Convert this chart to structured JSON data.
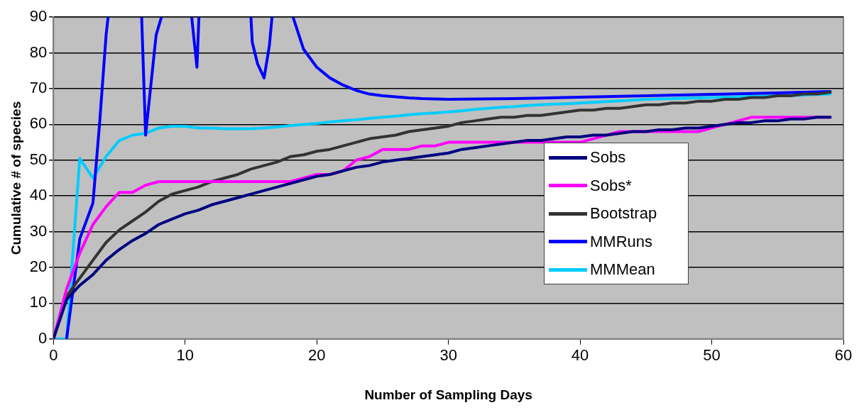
{
  "chart_data": {
    "type": "line",
    "xlabel": "Number of Sampling Days",
    "ylabel": "Cumulative # of species",
    "xlim": [
      0,
      60
    ],
    "xticks": [
      0,
      10,
      20,
      30,
      40,
      50,
      60
    ],
    "ylim": [
      0,
      90
    ],
    "yticks": [
      0,
      10,
      20,
      30,
      40,
      50,
      60,
      70,
      80,
      90
    ],
    "grid": "y",
    "legend": "right",
    "marker": "none",
    "line_style": "solid",
    "x": [
      0,
      1,
      2,
      3,
      4,
      5,
      6,
      7,
      8,
      9,
      10,
      11,
      12,
      13,
      14,
      15,
      16,
      17,
      18,
      19,
      20,
      21,
      22,
      23,
      24,
      25,
      26,
      27,
      28,
      29,
      30,
      31,
      32,
      33,
      34,
      35,
      36,
      37,
      38,
      39,
      40,
      41,
      42,
      43,
      44,
      45,
      46,
      47,
      48,
      49,
      50,
      51,
      52,
      53,
      54,
      55,
      56,
      57,
      58,
      59
    ],
    "series": [
      {
        "name": "Sobs",
        "color": "#000080",
        "values": [
          0,
          11,
          15,
          18,
          22,
          25,
          27.5,
          29.5,
          32,
          33.5,
          35,
          36,
          37.5,
          38.5,
          39.5,
          40.5,
          41.5,
          42.5,
          43.5,
          44.5,
          45.5,
          46,
          47,
          48,
          48.5,
          49.5,
          50,
          50.5,
          51,
          51.5,
          52,
          53,
          53.5,
          54,
          54.5,
          55,
          55.5,
          55.5,
          56,
          56.5,
          56.5,
          57,
          57,
          57.5,
          58,
          58,
          58.5,
          58.5,
          59,
          59,
          59.5,
          60,
          60.5,
          60.5,
          61,
          61,
          61.5,
          61.5,
          62,
          62
        ]
      },
      {
        "name": "Sobs*",
        "color": "#ff00ff",
        "values": [
          0,
          14,
          24,
          32,
          37,
          41,
          41,
          43,
          44,
          44,
          44,
          44,
          44,
          44,
          44,
          44,
          44,
          44,
          44,
          45,
          46,
          46,
          47,
          50,
          51,
          53,
          53,
          53,
          54,
          54,
          55,
          55,
          55,
          55,
          55,
          55,
          55,
          55,
          55,
          55,
          55,
          56,
          57,
          58,
          58,
          58,
          58,
          58,
          58,
          58,
          59,
          60,
          61,
          62,
          62,
          62,
          62,
          62,
          62,
          62
        ]
      },
      {
        "name": "Bootstrap",
        "color": "#333333",
        "values": [
          0,
          12,
          17,
          22,
          27,
          30.5,
          33,
          35.5,
          38.5,
          40.5,
          41.5,
          42.5,
          44,
          45,
          46,
          47.5,
          48.5,
          49.5,
          51,
          51.5,
          52.5,
          53,
          54,
          55,
          56,
          56.5,
          57,
          58,
          58.5,
          59,
          59.5,
          60.5,
          61,
          61.5,
          62,
          62,
          62.5,
          62.5,
          63,
          63.5,
          64,
          64,
          64.5,
          64.5,
          65,
          65.5,
          65.5,
          66,
          66,
          66.5,
          66.5,
          67,
          67,
          67.5,
          67.5,
          68,
          68,
          68.5,
          68.5,
          69
        ]
      },
      {
        "name": "MMRuns",
        "color": "#0000ff",
        "x": [
          1,
          2,
          3,
          3.5,
          4,
          4.15,
          5,
          6.7,
          7,
          7.8,
          8.2,
          9,
          10.5,
          10.9,
          11.05,
          13,
          15,
          15.1,
          15.5,
          16,
          16.4,
          16.6,
          17,
          18.2,
          19,
          20,
          21,
          22,
          23,
          24,
          25,
          26,
          27,
          28,
          29,
          30,
          35,
          40,
          45,
          50,
          55,
          59
        ],
        "values": [
          0,
          28,
          38,
          60,
          85,
          90,
          null,
          90,
          57,
          85,
          90,
          null,
          90,
          76,
          90,
          null,
          90,
          83,
          77,
          73,
          82,
          90,
          null,
          90,
          81,
          76,
          73,
          71,
          69.5,
          68.5,
          68,
          67.7,
          67.4,
          67.2,
          67.1,
          67,
          67.2,
          67.6,
          68,
          68.4,
          68.8,
          69.2
        ]
      },
      {
        "name": "MMMean",
        "color": "#00ccff",
        "values": [
          0,
          0,
          50.5,
          45,
          51,
          55.5,
          57,
          57.5,
          59,
          59.5,
          59.5,
          59,
          59,
          58.8,
          58.8,
          58.8,
          59,
          59.3,
          59.7,
          60,
          60.3,
          60.7,
          61,
          61.3,
          61.7,
          62,
          62.3,
          62.7,
          63,
          63.2,
          63.5,
          63.8,
          64.2,
          64.5,
          64.8,
          65,
          65.3,
          65.5,
          65.7,
          65.8,
          66,
          66.2,
          66.4,
          66.6,
          66.8,
          67,
          67.1,
          67.2,
          67.3,
          67.4,
          67.5,
          67.6,
          67.7,
          67.8,
          67.9,
          68,
          68.1,
          68.2,
          68.4,
          68.5
        ]
      }
    ]
  }
}
